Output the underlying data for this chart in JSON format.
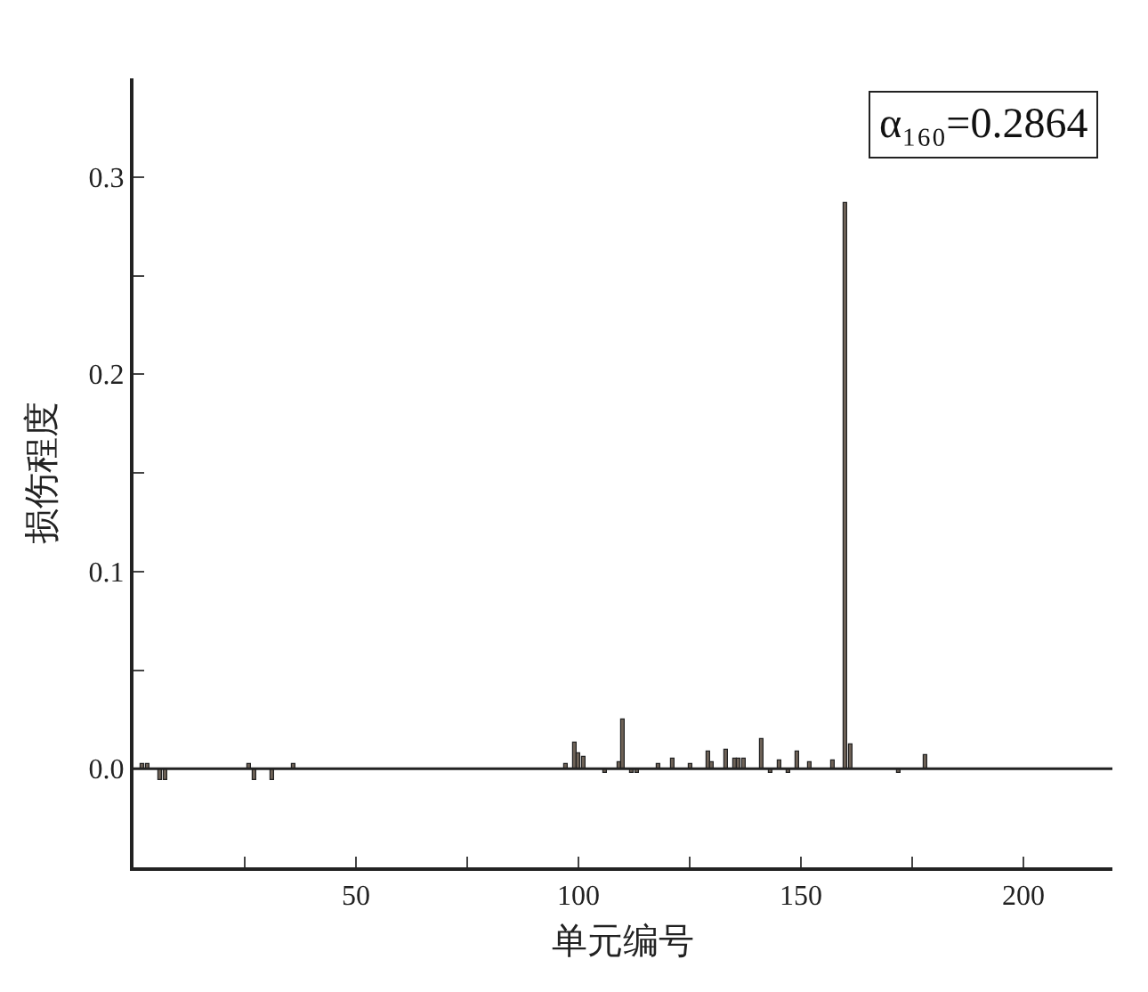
{
  "chart_data": {
    "type": "bar",
    "xlabel": "单元编号",
    "ylabel": "损伤程度",
    "annotations": [
      "α₁₆₀=0.2864"
    ],
    "x": [
      2,
      3,
      6,
      7,
      26,
      27,
      31,
      36,
      97,
      99,
      100,
      101,
      106,
      109,
      110,
      112,
      113,
      118,
      121,
      125,
      129,
      130,
      133,
      135,
      136,
      137,
      141,
      143,
      145,
      147,
      149,
      152,
      157,
      160,
      161,
      172,
      178
    ],
    "values": [
      0.002,
      0.002,
      -0.006,
      -0.006,
      0.002,
      -0.006,
      -0.006,
      0.002,
      0.002,
      0.013,
      0.008,
      0.006,
      -0.002,
      0.003,
      0.025,
      -0.002,
      -0.002,
      0.002,
      0.005,
      0.002,
      0.009,
      0.003,
      0.01,
      0.005,
      0.005,
      0.005,
      0.015,
      -0.002,
      0.004,
      -0.002,
      0.009,
      0.003,
      0.004,
      0.2864,
      0.012,
      -0.002,
      0.007
    ],
    "color": "#6e6257",
    "xlim": [
      0,
      220
    ],
    "ylim": [
      -0.05,
      0.35
    ],
    "xticks": [
      {
        "value": 25,
        "label": null
      },
      50,
      {
        "value": 75,
        "label": null
      },
      100,
      {
        "value": 125,
        "label": null
      },
      150,
      {
        "value": 175,
        "label": null
      },
      200
    ],
    "yticks": [
      {
        "value": -0.05,
        "label": null
      },
      {
        "value": 0,
        "label": "0.0"
      },
      {
        "value": 0.05,
        "label": null
      },
      0.1,
      {
        "value": 0.15,
        "label": null
      },
      0.2,
      {
        "value": 0.25,
        "label": null
      },
      0.3
    ],
    "ref_lines": [
      {
        "axis": "y",
        "value": 0,
        "color": "#222222"
      }
    ],
    "grid": false
  }
}
